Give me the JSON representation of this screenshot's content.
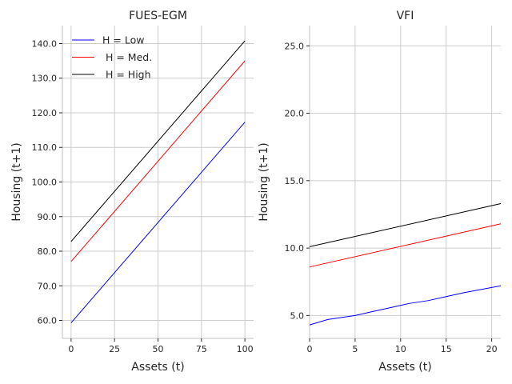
{
  "chart_data": [
    {
      "type": "line",
      "title": "FUES-EGM",
      "xlabel": "Assets (t)",
      "ylabel": "Housing (t+1)",
      "xlim": [
        -5,
        105
      ],
      "ylim": [
        54.8,
        145.2
      ],
      "xticks": [
        0,
        25,
        50,
        75,
        100
      ],
      "xtick_labels": [
        "0",
        "25",
        "50",
        "75",
        "100"
      ],
      "yticks": [
        60,
        70,
        80,
        90,
        100,
        110,
        120,
        130,
        140
      ],
      "ytick_labels": [
        "60.0",
        "70.0",
        "80.0",
        "90.0",
        "100.0",
        "110.0",
        "120.0",
        "130.0",
        "140.0"
      ],
      "grid": true,
      "legend": "top-left",
      "series": [
        {
          "name": "H = Low",
          "color": "#0000ff",
          "x": [
            0,
            100
          ],
          "y": [
            59.3,
            117.3
          ]
        },
        {
          "name": " H = Med.",
          "color": "#ff0000",
          "x": [
            0,
            100
          ],
          "y": [
            77.0,
            135.0
          ]
        },
        {
          "name": " H = High",
          "color": "#000000",
          "x": [
            0,
            100
          ],
          "y": [
            82.8,
            140.8
          ]
        }
      ]
    },
    {
      "type": "line",
      "title": "VFI",
      "xlabel": "Assets (t)",
      "ylabel": "Housing (t+1)",
      "xlim": [
        0,
        21
      ],
      "ylim": [
        3.3,
        26.5
      ],
      "xticks": [
        0,
        5,
        10,
        15,
        20
      ],
      "xtick_labels": [
        "0",
        "5",
        "10",
        "15",
        "20"
      ],
      "yticks": [
        5,
        10,
        15,
        20,
        25
      ],
      "ytick_labels": [
        "5.0",
        "10.0",
        "15.0",
        "20.0",
        "25.0"
      ],
      "grid": true,
      "series": [
        {
          "color": "#0000ff",
          "x": [
            0,
            2,
            5,
            7,
            9,
            11,
            13,
            15,
            17,
            19,
            21
          ],
          "y": [
            4.3,
            4.7,
            5.0,
            5.3,
            5.6,
            5.9,
            6.1,
            6.4,
            6.7,
            6.95,
            7.2
          ]
        },
        {
          "color": "#ff0000",
          "x": [
            0,
            21
          ],
          "y": [
            8.6,
            11.8
          ]
        },
        {
          "color": "#000000",
          "x": [
            0,
            21
          ],
          "y": [
            10.1,
            13.3
          ]
        }
      ]
    }
  ]
}
